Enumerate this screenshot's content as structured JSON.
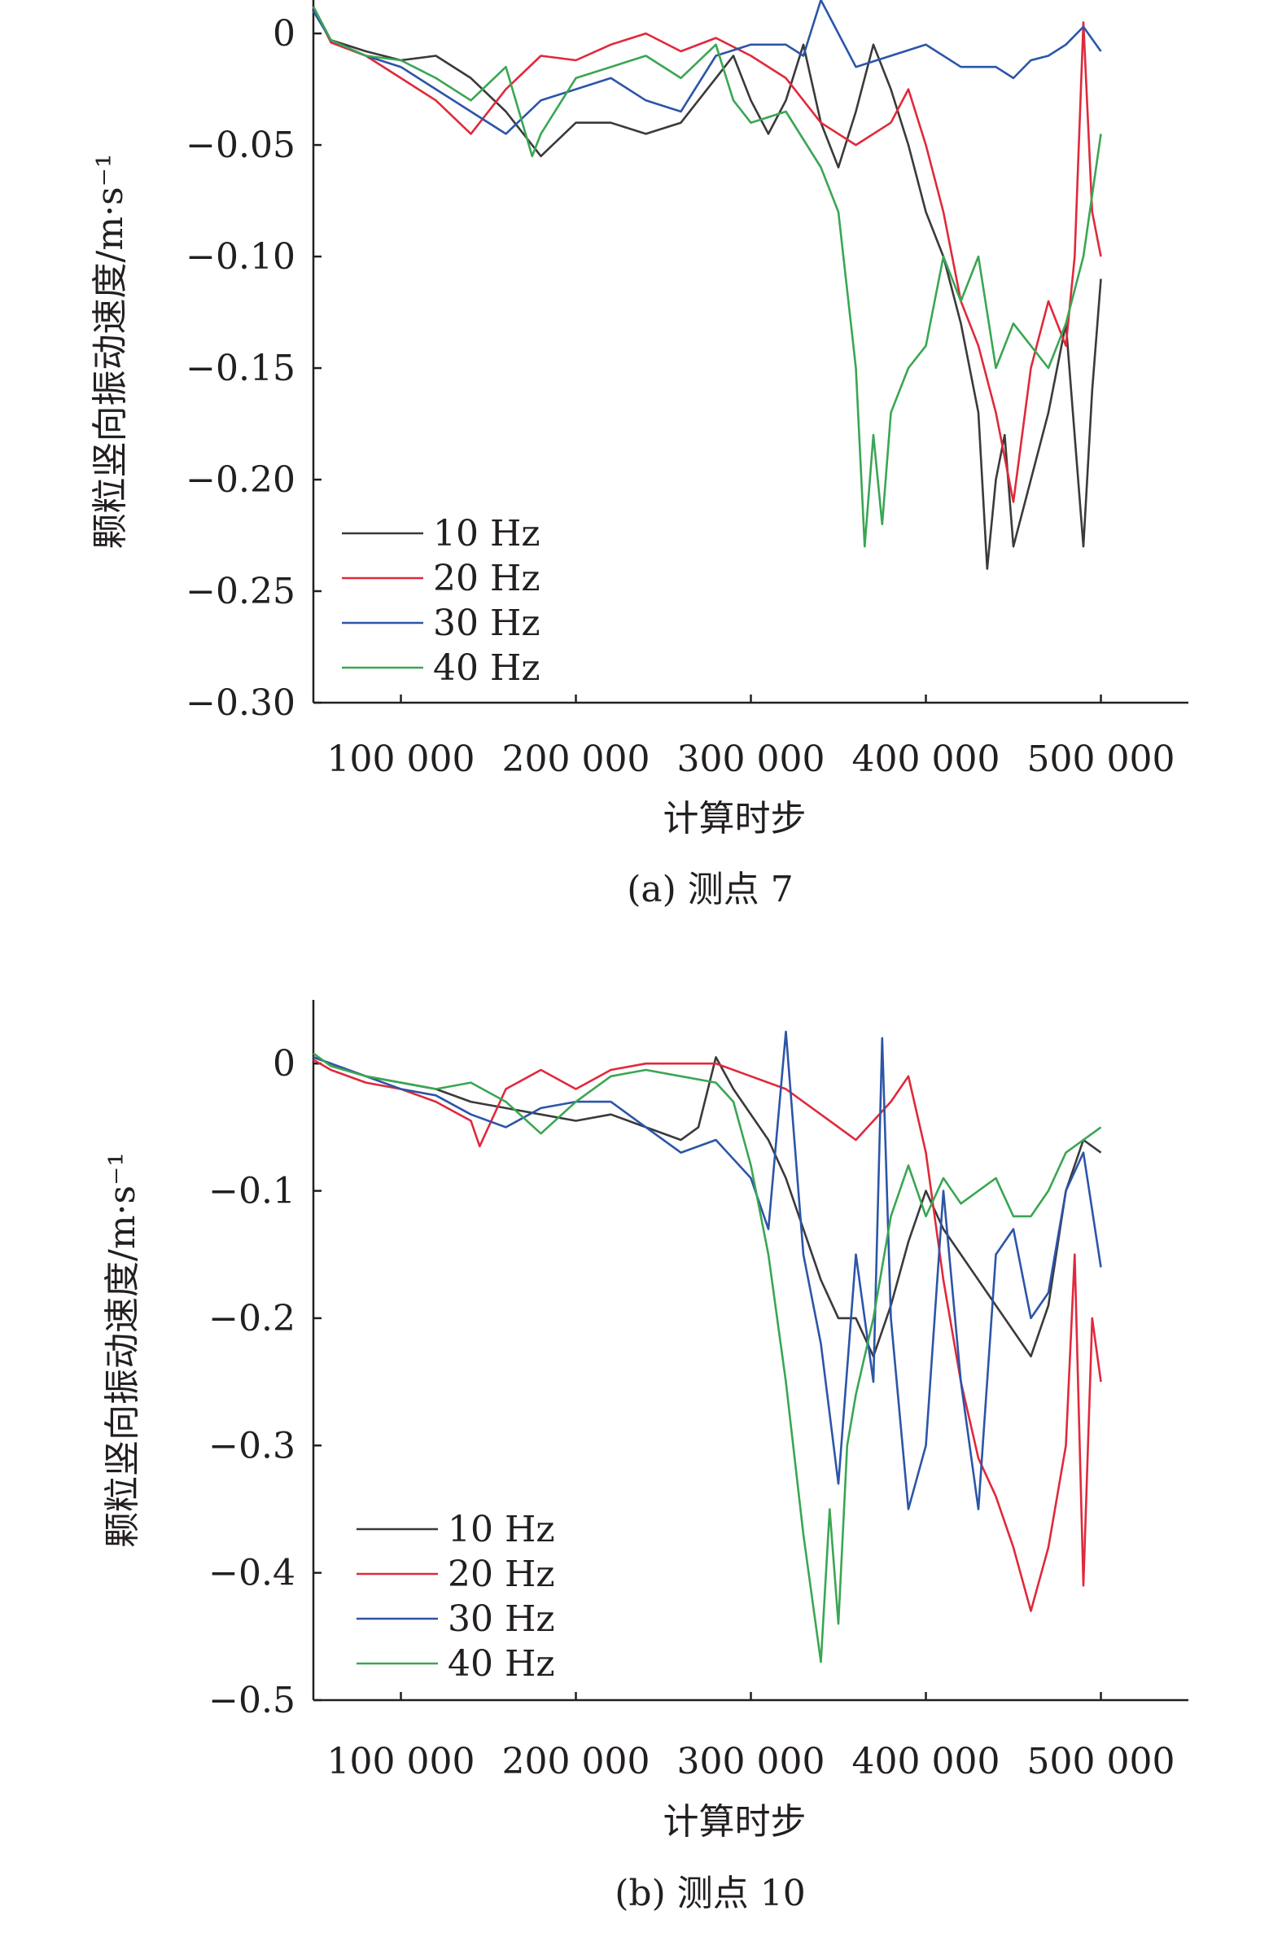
{
  "figure": {
    "panels_caption": [
      "(a) 测点 7",
      "(b) 测点 10"
    ]
  },
  "chart_data": [
    {
      "type": "line",
      "title": "",
      "caption": "(a) 测点 7",
      "xlabel": "计算时步",
      "ylabel": "颗粒竖向振动速度/m·s⁻¹",
      "xlim": [
        50000,
        550000
      ],
      "ylim": [
        -0.3,
        0.015
      ],
      "xticks": [
        100000,
        200000,
        300000,
        400000,
        500000
      ],
      "xtick_labels": [
        "100 000",
        "200 000",
        "300 000",
        "400 000",
        "500 000"
      ],
      "yticks": [
        0,
        -0.05,
        -0.1,
        -0.15,
        -0.2,
        -0.25,
        -0.3
      ],
      "ytick_labels": [
        "0",
        "−0.05",
        "−0.10",
        "−0.15",
        "−0.20",
        "−0.25",
        "−0.30"
      ],
      "legend_position": "bottom-left",
      "grid": false,
      "series": [
        {
          "name": "10 Hz",
          "color": "#3a3a3a",
          "x": [
            50000,
            60000,
            80000,
            100000,
            120000,
            140000,
            160000,
            180000,
            200000,
            220000,
            240000,
            260000,
            280000,
            290000,
            300000,
            310000,
            320000,
            330000,
            340000,
            350000,
            360000,
            370000,
            380000,
            390000,
            400000,
            410000,
            420000,
            430000,
            435000,
            440000,
            445000,
            450000,
            460000,
            470000,
            480000,
            490000,
            495000,
            500000
          ],
          "y": [
            0.012,
            -0.003,
            -0.008,
            -0.012,
            -0.01,
            -0.02,
            -0.035,
            -0.055,
            -0.04,
            -0.04,
            -0.045,
            -0.04,
            -0.02,
            -0.01,
            -0.03,
            -0.045,
            -0.03,
            -0.005,
            -0.04,
            -0.06,
            -0.035,
            -0.005,
            -0.025,
            -0.05,
            -0.08,
            -0.1,
            -0.13,
            -0.17,
            -0.24,
            -0.2,
            -0.18,
            -0.23,
            -0.2,
            -0.17,
            -0.13,
            -0.23,
            -0.16,
            -0.11
          ]
        },
        {
          "name": "20 Hz",
          "color": "#e0293b",
          "x": [
            50000,
            60000,
            80000,
            100000,
            120000,
            140000,
            160000,
            180000,
            200000,
            220000,
            240000,
            260000,
            280000,
            300000,
            320000,
            340000,
            360000,
            380000,
            390000,
            400000,
            410000,
            420000,
            430000,
            440000,
            450000,
            460000,
            470000,
            480000,
            485000,
            490000,
            495000,
            500000
          ],
          "y": [
            0.012,
            -0.004,
            -0.01,
            -0.02,
            -0.03,
            -0.045,
            -0.025,
            -0.01,
            -0.012,
            -0.005,
            0.0,
            -0.008,
            -0.002,
            -0.01,
            -0.02,
            -0.04,
            -0.05,
            -0.04,
            -0.025,
            -0.05,
            -0.08,
            -0.12,
            -0.14,
            -0.17,
            -0.21,
            -0.15,
            -0.12,
            -0.14,
            -0.1,
            0.005,
            -0.08,
            -0.1
          ]
        },
        {
          "name": "30 Hz",
          "color": "#2c55a8",
          "x": [
            50000,
            60000,
            80000,
            100000,
            120000,
            140000,
            160000,
            180000,
            200000,
            220000,
            240000,
            260000,
            280000,
            300000,
            320000,
            330000,
            340000,
            350000,
            360000,
            380000,
            400000,
            420000,
            440000,
            450000,
            460000,
            470000,
            480000,
            490000,
            500000
          ],
          "y": [
            0.01,
            -0.003,
            -0.01,
            -0.015,
            -0.025,
            -0.035,
            -0.045,
            -0.03,
            -0.025,
            -0.02,
            -0.03,
            -0.035,
            -0.01,
            -0.005,
            -0.005,
            -0.01,
            0.018,
            0.0,
            -0.015,
            -0.01,
            -0.005,
            -0.015,
            -0.015,
            -0.02,
            -0.012,
            -0.01,
            -0.005,
            0.003,
            -0.008
          ]
        },
        {
          "name": "40 Hz",
          "color": "#3aa653",
          "x": [
            50000,
            60000,
            80000,
            100000,
            120000,
            140000,
            160000,
            175000,
            180000,
            200000,
            220000,
            240000,
            260000,
            280000,
            290000,
            300000,
            320000,
            340000,
            350000,
            360000,
            365000,
            370000,
            375000,
            380000,
            390000,
            400000,
            410000,
            420000,
            430000,
            440000,
            450000,
            460000,
            470000,
            480000,
            490000,
            500000
          ],
          "y": [
            0.012,
            -0.003,
            -0.01,
            -0.012,
            -0.02,
            -0.03,
            -0.015,
            -0.055,
            -0.045,
            -0.02,
            -0.015,
            -0.01,
            -0.02,
            -0.005,
            -0.03,
            -0.04,
            -0.035,
            -0.06,
            -0.08,
            -0.15,
            -0.23,
            -0.18,
            -0.22,
            -0.17,
            -0.15,
            -0.14,
            -0.1,
            -0.12,
            -0.1,
            -0.15,
            -0.13,
            -0.14,
            -0.15,
            -0.13,
            -0.1,
            -0.045
          ]
        }
      ]
    },
    {
      "type": "line",
      "title": "",
      "caption": "(b) 测点 10",
      "xlabel": "计算时步",
      "ylabel": "颗粒竖向振动速度/m·s⁻¹",
      "xlim": [
        50000,
        550000
      ],
      "ylim": [
        -0.5,
        0.05
      ],
      "xticks": [
        100000,
        200000,
        300000,
        400000,
        500000
      ],
      "xtick_labels": [
        "100 000",
        "200 000",
        "300 000",
        "400 000",
        "500 000"
      ],
      "yticks": [
        0,
        -0.1,
        -0.2,
        -0.3,
        -0.4,
        -0.5
      ],
      "ytick_labels": [
        "0",
        "−0.1",
        "−0.2",
        "−0.3",
        "−0.4",
        "−0.5"
      ],
      "legend_position": "bottom-left",
      "grid": false,
      "series": [
        {
          "name": "10 Hz",
          "color": "#3a3a3a",
          "x": [
            50000,
            60000,
            80000,
            100000,
            120000,
            140000,
            160000,
            180000,
            200000,
            220000,
            240000,
            260000,
            270000,
            280000,
            290000,
            300000,
            310000,
            320000,
            330000,
            340000,
            350000,
            360000,
            370000,
            380000,
            390000,
            400000,
            410000,
            420000,
            430000,
            440000,
            450000,
            460000,
            470000,
            480000,
            490000,
            500000
          ],
          "y": [
            0.005,
            0.0,
            -0.01,
            -0.015,
            -0.02,
            -0.03,
            -0.035,
            -0.04,
            -0.045,
            -0.04,
            -0.05,
            -0.06,
            -0.05,
            0.005,
            -0.02,
            -0.04,
            -0.06,
            -0.09,
            -0.13,
            -0.17,
            -0.2,
            -0.2,
            -0.23,
            -0.19,
            -0.14,
            -0.1,
            -0.13,
            -0.15,
            -0.17,
            -0.19,
            -0.21,
            -0.23,
            -0.19,
            -0.1,
            -0.06,
            -0.07
          ]
        },
        {
          "name": "20 Hz",
          "color": "#e0293b",
          "x": [
            50000,
            60000,
            80000,
            100000,
            120000,
            140000,
            145000,
            160000,
            180000,
            200000,
            220000,
            240000,
            260000,
            280000,
            300000,
            320000,
            340000,
            360000,
            380000,
            390000,
            400000,
            410000,
            420000,
            430000,
            440000,
            450000,
            460000,
            470000,
            480000,
            485000,
            490000,
            495000,
            500000
          ],
          "y": [
            0.003,
            -0.005,
            -0.015,
            -0.02,
            -0.03,
            -0.045,
            -0.065,
            -0.02,
            -0.005,
            -0.02,
            -0.005,
            0.0,
            0.0,
            0.0,
            -0.01,
            -0.02,
            -0.04,
            -0.06,
            -0.03,
            -0.01,
            -0.07,
            -0.17,
            -0.25,
            -0.31,
            -0.34,
            -0.38,
            -0.43,
            -0.38,
            -0.3,
            -0.15,
            -0.41,
            -0.2,
            -0.25
          ]
        },
        {
          "name": "30 Hz",
          "color": "#2c55a8",
          "x": [
            50000,
            60000,
            80000,
            100000,
            120000,
            140000,
            160000,
            180000,
            200000,
            220000,
            240000,
            260000,
            280000,
            300000,
            310000,
            320000,
            330000,
            340000,
            350000,
            360000,
            370000,
            375000,
            380000,
            390000,
            400000,
            410000,
            420000,
            430000,
            440000,
            450000,
            460000,
            470000,
            480000,
            490000,
            500000
          ],
          "y": [
            0.005,
            0.0,
            -0.01,
            -0.02,
            -0.025,
            -0.04,
            -0.05,
            -0.035,
            -0.03,
            -0.03,
            -0.05,
            -0.07,
            -0.06,
            -0.09,
            -0.13,
            0.025,
            -0.15,
            -0.22,
            -0.33,
            -0.15,
            -0.25,
            0.02,
            -0.2,
            -0.35,
            -0.3,
            -0.1,
            -0.25,
            -0.35,
            -0.15,
            -0.13,
            -0.2,
            -0.18,
            -0.1,
            -0.07,
            -0.16
          ]
        },
        {
          "name": "40 Hz",
          "color": "#3aa653",
          "x": [
            50000,
            60000,
            80000,
            100000,
            120000,
            140000,
            160000,
            180000,
            200000,
            220000,
            240000,
            260000,
            280000,
            290000,
            300000,
            310000,
            320000,
            330000,
            340000,
            345000,
            350000,
            355000,
            360000,
            370000,
            380000,
            390000,
            400000,
            410000,
            420000,
            430000,
            440000,
            450000,
            460000,
            470000,
            480000,
            490000,
            500000
          ],
          "y": [
            0.008,
            -0.002,
            -0.01,
            -0.015,
            -0.02,
            -0.015,
            -0.03,
            -0.055,
            -0.03,
            -0.01,
            -0.005,
            -0.01,
            -0.015,
            -0.03,
            -0.08,
            -0.15,
            -0.25,
            -0.37,
            -0.47,
            -0.35,
            -0.44,
            -0.3,
            -0.26,
            -0.2,
            -0.12,
            -0.08,
            -0.12,
            -0.09,
            -0.11,
            -0.1,
            -0.09,
            -0.12,
            -0.12,
            -0.1,
            -0.07,
            -0.06,
            -0.05
          ]
        }
      ]
    }
  ]
}
